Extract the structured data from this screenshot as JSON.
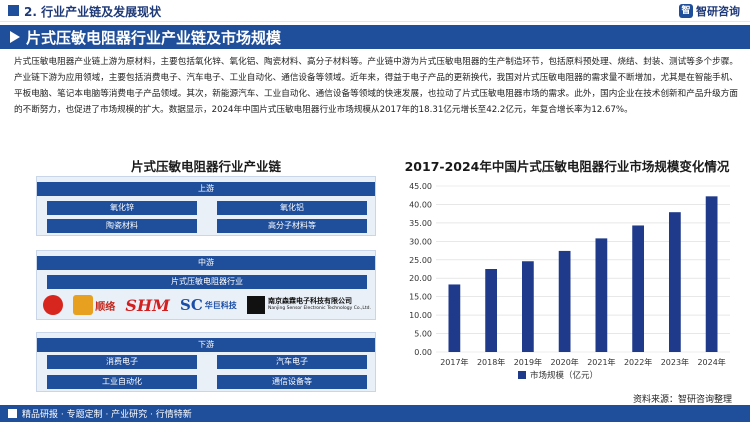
{
  "header": {
    "section_title": "2. 行业产业链及发展现状",
    "brand_logo": "智",
    "brand_name": "智研咨询"
  },
  "title_bar": {
    "title": "片式压敏电阻器行业产业链及市场规模"
  },
  "paragraph": "片式压敏电阻器产业链上游为原材料，主要包括氧化锌、氧化铝、陶瓷材料、高分子材料等。产业链中游为片式压敏电阻器的生产制造环节，包括原料预处理、烧结、封装、测试等多个步骤。产业链下游为应用领域，主要包括消费电子、汽车电子、工业自动化、通信设备等领域。近年来，得益于电子产品的更新换代，我国对片式压敏电阻器的需求量不断增加，尤其是在智能手机、平板电脑、笔记本电脑等消费电子产品领域。其次，新能源汽车、工业自动化、通信设备等领域的快速发展，也拉动了片式压敏电阻器市场的需求。此外，国内企业在技术创新和产品升级方面的不断努力，也促进了市场规模的扩大。数据显示，2024年中国片式压敏电阻器行业市场规模从2017年的18.31亿元增长至42.2亿元，年复合增长率为12.67%。",
  "chain": {
    "title": "片式压敏电阻器行业产业链",
    "upstream": {
      "head": "上游",
      "items": [
        "氧化锌",
        "氧化铝",
        "陶瓷材料",
        "高分子材料等"
      ]
    },
    "midstream": {
      "head": "中游",
      "industry": "片式压敏电阻器行业",
      "logos": {
        "logo2": "顺络",
        "shm": "SHM",
        "sc": "SC",
        "sc_cn": "华巨科技",
        "nj_cn": "南京森霖电子科技有限公司",
        "nj_en": "Nanjing Sensor Electronic Technology Co.,Ltd."
      }
    },
    "downstream": {
      "head": "下游",
      "items": [
        "消费电子",
        "汽车电子",
        "工业自动化",
        "通信设备等"
      ]
    }
  },
  "chart_data": {
    "type": "bar",
    "title": "2017-2024年中国片式压敏电阻器行业市场规模变化情况",
    "categories": [
      "2017年",
      "2018年",
      "2019年",
      "2020年",
      "2021年",
      "2022年",
      "2023年",
      "2024年"
    ],
    "series": [
      {
        "name": "市场规模（亿元）",
        "values": [
          18.31,
          22.5,
          24.6,
          27.4,
          30.8,
          34.3,
          37.9,
          42.2
        ]
      }
    ],
    "y_ticks": [
      "0.00",
      "5.00",
      "10.00",
      "15.00",
      "20.00",
      "25.00",
      "30.00",
      "35.00",
      "40.00",
      "45.00"
    ],
    "ylim": [
      0,
      45
    ],
    "legend_position": "bottom",
    "bar_color": "#1f3a8a"
  },
  "source": "资料来源：智研咨询整理",
  "footer": {
    "text": "精品研报 · 专题定制 · 产业研究 · 行情特新"
  }
}
